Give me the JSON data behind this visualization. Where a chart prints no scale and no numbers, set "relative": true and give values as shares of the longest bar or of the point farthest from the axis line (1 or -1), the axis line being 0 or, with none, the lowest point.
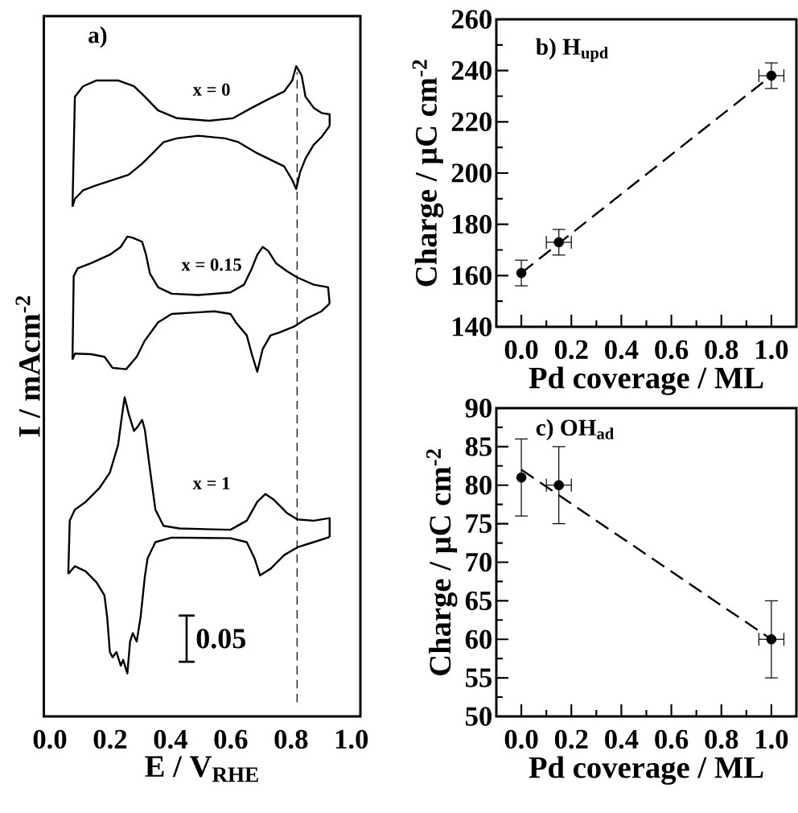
{
  "chart_data": [
    {
      "type": "line",
      "relative": true,
      "xlabel": "E / V$_{RHE}$",
      "ylabel": "I / mAcm$^{-2}$",
      "tick_labels": "x",
      "xlim": [
        -0.02,
        1.03
      ],
      "xticks": [
        {
          "value": 0,
          "label": "0.0"
        },
        {
          "value": 0.2,
          "label": "0.2"
        },
        {
          "value": 0.4,
          "label": "0.4"
        },
        {
          "value": 0.6,
          "label": "0.6"
        },
        {
          "value": 0.8,
          "label": "0.8"
        },
        {
          "value": 1,
          "label": "1.0"
        }
      ],
      "annotations": [
        "a)",
        "0.05"
      ],
      "ref_lines": [
        {
          "axis": "x",
          "value": 0.82,
          "line_style": "dashed"
        }
      ],
      "marker": "none",
      "series": [
        {
          "name": "x = 0",
          "color": "#000000",
          "x": [
            0.075,
            0.083,
            0.11,
            0.155,
            0.226,
            0.279,
            0.315,
            0.359,
            0.421,
            0.528,
            0.608,
            0.67,
            0.724,
            0.777,
            0.804,
            0.817,
            0.835,
            0.848,
            0.875,
            0.901,
            0.928,
            0.928
          ],
          "values": [
            0.784,
            0.953,
            0.969,
            0.978,
            0.978,
            0.969,
            0.953,
            0.932,
            0.92,
            0.916,
            0.92,
            0.936,
            0.949,
            0.961,
            0.978,
            1.0,
            0.986,
            0.953,
            0.936,
            0.928,
            0.926,
            0.908
          ]
        },
        {
          "color": "#000000",
          "x": [
            0.928,
            0.901,
            0.875,
            0.848,
            0.83,
            0.817,
            0.804,
            0.777,
            0.741,
            0.688,
            0.626,
            0.581,
            0.492,
            0.421,
            0.377,
            0.341,
            0.306,
            0.261,
            0.208,
            0.155,
            0.11,
            0.083,
            0.075
          ],
          "values": [
            0.908,
            0.891,
            0.879,
            0.858,
            0.837,
            0.811,
            0.825,
            0.846,
            0.854,
            0.866,
            0.883,
            0.889,
            0.893,
            0.889,
            0.883,
            0.866,
            0.85,
            0.833,
            0.825,
            0.817,
            0.809,
            0.796,
            0.784
          ]
        },
        {
          "name": "x = 0.15",
          "color": "#000000",
          "x": [
            0.075,
            0.079,
            0.092,
            0.137,
            0.199,
            0.235,
            0.257,
            0.275,
            0.306,
            0.319,
            0.332,
            0.359,
            0.404,
            0.492,
            0.599,
            0.644,
            0.67,
            0.688,
            0.706,
            0.724,
            0.75,
            0.786,
            0.821,
            0.875,
            0.923,
            0.928
          ],
          "values": [
            0.549,
            0.677,
            0.689,
            0.697,
            0.71,
            0.722,
            0.738,
            0.736,
            0.73,
            0.71,
            0.681,
            0.66,
            0.65,
            0.648,
            0.652,
            0.664,
            0.689,
            0.71,
            0.722,
            0.716,
            0.697,
            0.685,
            0.675,
            0.664,
            0.66,
            0.635
          ]
        },
        {
          "color": "#000000",
          "x": [
            0.928,
            0.901,
            0.848,
            0.812,
            0.759,
            0.732,
            0.706,
            0.688,
            0.67,
            0.653,
            0.617,
            0.599,
            0.546,
            0.475,
            0.404,
            0.359,
            0.315,
            0.288,
            0.253,
            0.208,
            0.181,
            0.137,
            0.083,
            0.075
          ],
          "values": [
            0.635,
            0.623,
            0.611,
            0.6,
            0.59,
            0.586,
            0.565,
            0.53,
            0.557,
            0.586,
            0.606,
            0.619,
            0.623,
            0.621,
            0.619,
            0.606,
            0.578,
            0.553,
            0.534,
            0.536,
            0.553,
            0.557,
            0.558,
            0.549
          ]
        },
        {
          "name": "x = 1",
          "color": "#000000",
          "x": [
            0.061,
            0.066,
            0.083,
            0.119,
            0.164,
            0.199,
            0.226,
            0.239,
            0.248,
            0.261,
            0.279,
            0.292,
            0.306,
            0.315,
            0.332,
            0.35,
            0.377,
            0.43,
            0.599,
            0.653,
            0.688,
            0.715,
            0.741,
            0.786,
            0.821,
            0.875,
            0.928,
            0.928
          ],
          "values": [
            0.219,
            0.301,
            0.318,
            0.33,
            0.351,
            0.375,
            0.417,
            0.462,
            0.491,
            0.466,
            0.439,
            0.446,
            0.456,
            0.441,
            0.38,
            0.318,
            0.293,
            0.289,
            0.287,
            0.301,
            0.33,
            0.342,
            0.334,
            0.313,
            0.303,
            0.301,
            0.305,
            0.276
          ]
        },
        {
          "color": "#000000",
          "x": [
            0.928,
            0.875,
            0.821,
            0.777,
            0.732,
            0.697,
            0.679,
            0.653,
            0.599,
            0.404,
            0.35,
            0.324,
            0.315,
            0.301,
            0.288,
            0.275,
            0.266,
            0.257,
            0.243,
            0.235,
            0.221,
            0.208,
            0.199,
            0.19,
            0.181,
            0.155,
            0.119,
            0.083,
            0.061
          ],
          "values": [
            0.276,
            0.268,
            0.26,
            0.248,
            0.227,
            0.217,
            0.243,
            0.268,
            0.274,
            0.275,
            0.268,
            0.243,
            0.215,
            0.153,
            0.115,
            0.128,
            0.115,
            0.066,
            0.087,
            0.078,
            0.099,
            0.091,
            0.099,
            0.153,
            0.186,
            0.206,
            0.223,
            0.231,
            0.219
          ]
        }
      ]
    },
    {
      "type": "scatter",
      "xlabel": "Pd coverage / ML",
      "ylabel": "Charge / μC cm$^{-2}$",
      "annotations": [
        "b)  H$_{upd}$"
      ],
      "xlim": [
        -0.1,
        1.1
      ],
      "ylim": [
        140,
        260
      ],
      "marker": "circle",
      "xticks": [
        {
          "value": 0,
          "label": "0.0"
        },
        {
          "value": 0.1,
          "label": null
        },
        {
          "value": 0.2,
          "label": "0.2"
        },
        {
          "value": 0.3,
          "label": null
        },
        {
          "value": 0.4,
          "label": "0.4"
        },
        {
          "value": 0.5,
          "label": null
        },
        {
          "value": 0.6,
          "label": "0.6"
        },
        {
          "value": 0.7,
          "label": null
        },
        {
          "value": 0.8,
          "label": "0.8"
        },
        {
          "value": 0.9,
          "label": null
        },
        {
          "value": 1,
          "label": "1.0"
        }
      ],
      "yticks": [
        140,
        {
          "value": 150,
          "label": null
        },
        160,
        {
          "value": 170,
          "label": null
        },
        180,
        {
          "value": 190,
          "label": null
        },
        200,
        {
          "value": 210,
          "label": null
        },
        220,
        {
          "value": 230,
          "label": null
        },
        240,
        {
          "value": 250,
          "label": null
        },
        260
      ],
      "series": [
        {
          "type": "scatter",
          "color": "#000000",
          "x": [
            0,
            0.15,
            1
          ],
          "values": [
            161,
            173,
            238
          ],
          "errors": [
            5,
            5,
            5
          ],
          "xerrors": [
            null,
            0.05,
            0.05
          ]
        },
        {
          "type": "line",
          "color": "#000000",
          "marker": "none",
          "line_style": "dashed",
          "x": [
            0,
            1
          ],
          "values": [
            161,
            238
          ]
        }
      ]
    },
    {
      "type": "scatter",
      "xlabel": "Pd coverage / ML",
      "ylabel": "Charge / μC cm$^{-2}$",
      "annotations": [
        "c)  OH$_{ad}$"
      ],
      "xlim": [
        -0.1,
        1.1
      ],
      "ylim": [
        50,
        90
      ],
      "marker": "circle",
      "xticks": [
        {
          "value": 0,
          "label": "0.0"
        },
        {
          "value": 0.1,
          "label": null
        },
        {
          "value": 0.2,
          "label": "0.2"
        },
        {
          "value": 0.3,
          "label": null
        },
        {
          "value": 0.4,
          "label": "0.4"
        },
        {
          "value": 0.5,
          "label": null
        },
        {
          "value": 0.6,
          "label": "0.6"
        },
        {
          "value": 0.7,
          "label": null
        },
        {
          "value": 0.8,
          "label": "0.8"
        },
        {
          "value": 0.9,
          "label": null
        },
        {
          "value": 1,
          "label": "1.0"
        }
      ],
      "yticks": [
        50,
        {
          "value": 52.5,
          "label": null
        },
        55,
        {
          "value": 57.5,
          "label": null
        },
        60,
        {
          "value": 62.5,
          "label": null
        },
        65,
        {
          "value": 67.5,
          "label": null
        },
        70,
        {
          "value": 72.5,
          "label": null
        },
        75,
        {
          "value": 77.5,
          "label": null
        },
        80,
        {
          "value": 82.5,
          "label": null
        },
        85,
        {
          "value": 87.5,
          "label": null
        },
        90
      ],
      "series": [
        {
          "type": "scatter",
          "color": "#000000",
          "x": [
            0,
            0.15,
            1
          ],
          "values": [
            81,
            80,
            60
          ],
          "errors": [
            5,
            5,
            5
          ],
          "xerrors": [
            null,
            0.05,
            0.05
          ]
        },
        {
          "type": "line",
          "color": "#000000",
          "marker": "none",
          "line_style": "dashed",
          "x": [
            0,
            1
          ],
          "values": [
            82,
            60
          ]
        }
      ]
    }
  ]
}
